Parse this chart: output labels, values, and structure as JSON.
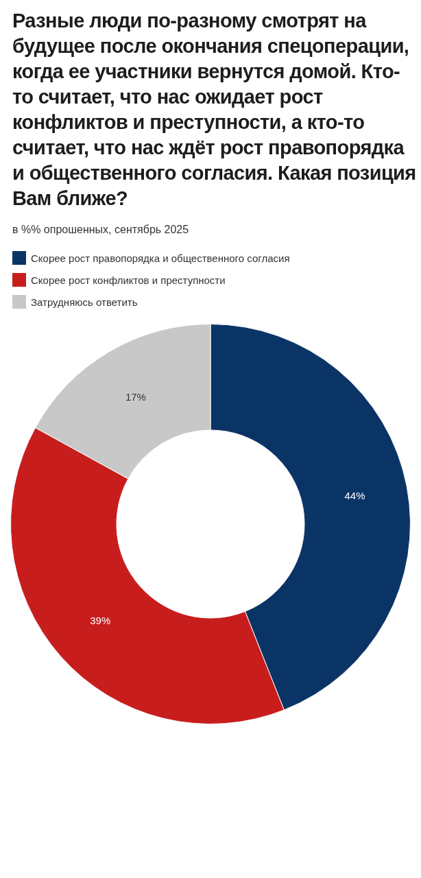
{
  "chart_data": {
    "type": "donut",
    "title": "Разные люди по-разному смотрят на будущее после окончания спецоперации, когда ее участники вернутся домой. Кто-то считает, что нас ожидает рост конфликтов и преступности, а кто-то считает, что нас ждёт рост правопорядка и общественного согласия. Какая позиция Вам ближе?",
    "subtitle": "в %% опрошенных, сентябрь 2025",
    "categories": [
      "Скорее рост правопорядка и общественного согласия",
      "Скорее рост конфликтов и преступности",
      "Затрудняюсь ответить"
    ],
    "values": [
      44,
      39,
      17
    ],
    "colors": [
      "#0b3466",
      "#c71e1d",
      "#c8c8c8"
    ],
    "value_labels": [
      "44%",
      "39%",
      "17%"
    ],
    "legend": "top left"
  }
}
